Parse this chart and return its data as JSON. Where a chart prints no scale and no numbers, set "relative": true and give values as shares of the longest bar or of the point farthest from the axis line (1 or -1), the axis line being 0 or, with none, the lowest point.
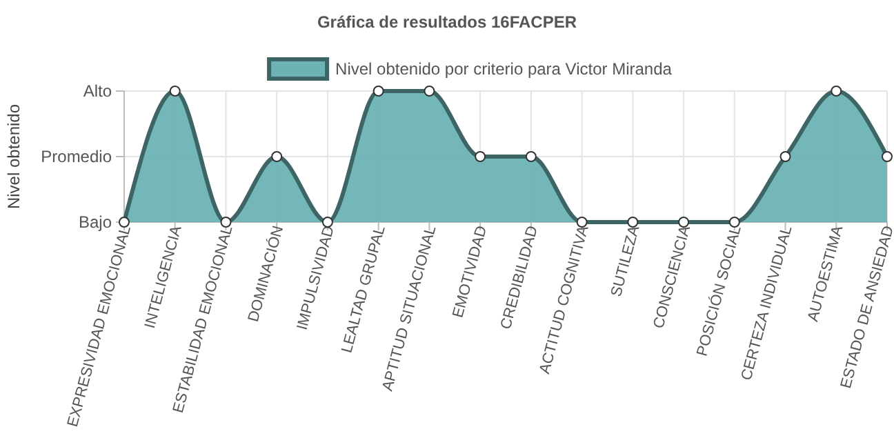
{
  "chart_data": {
    "type": "area",
    "title": "Gráfica de resultados 16FACPER",
    "ylabel": "Nivel obtenido",
    "categories": [
      "EXPRESIVIDAD EMOCIONAL",
      "INTELIGENCIA",
      "ESTABILIDAD EMOCIONAL",
      "DOMINACIÓN",
      "IMPULSIVIDAD",
      "LEALTAD GRUPAL",
      "APTITUD SITUACIONAL",
      "EMOTIVIDAD",
      "CREDIBILIDAD",
      "ACTITUD COGNITIVA",
      "SUTILEZA",
      "CONSCIENCIA",
      "POSICIÓN SOCIAL",
      "CERTEZA INDIVIDUAL",
      "AUTOESTIMA",
      "ESTADO DE ANSIEDAD"
    ],
    "y_categories": [
      "Alto",
      "Promedio",
      "Bajo"
    ],
    "relative": true,
    "series": [
      {
        "name": "Nivel obtenido por criterio para Victor Miranda",
        "color": "#6db3b5",
        "values": [
          0,
          1,
          0,
          0.5,
          0,
          1,
          1,
          0.5,
          0.5,
          0,
          0,
          0,
          0,
          0.5,
          1,
          0.5
        ]
      }
    ],
    "grid": true,
    "legend": "top",
    "marker": "circle",
    "line_style": "solid"
  }
}
